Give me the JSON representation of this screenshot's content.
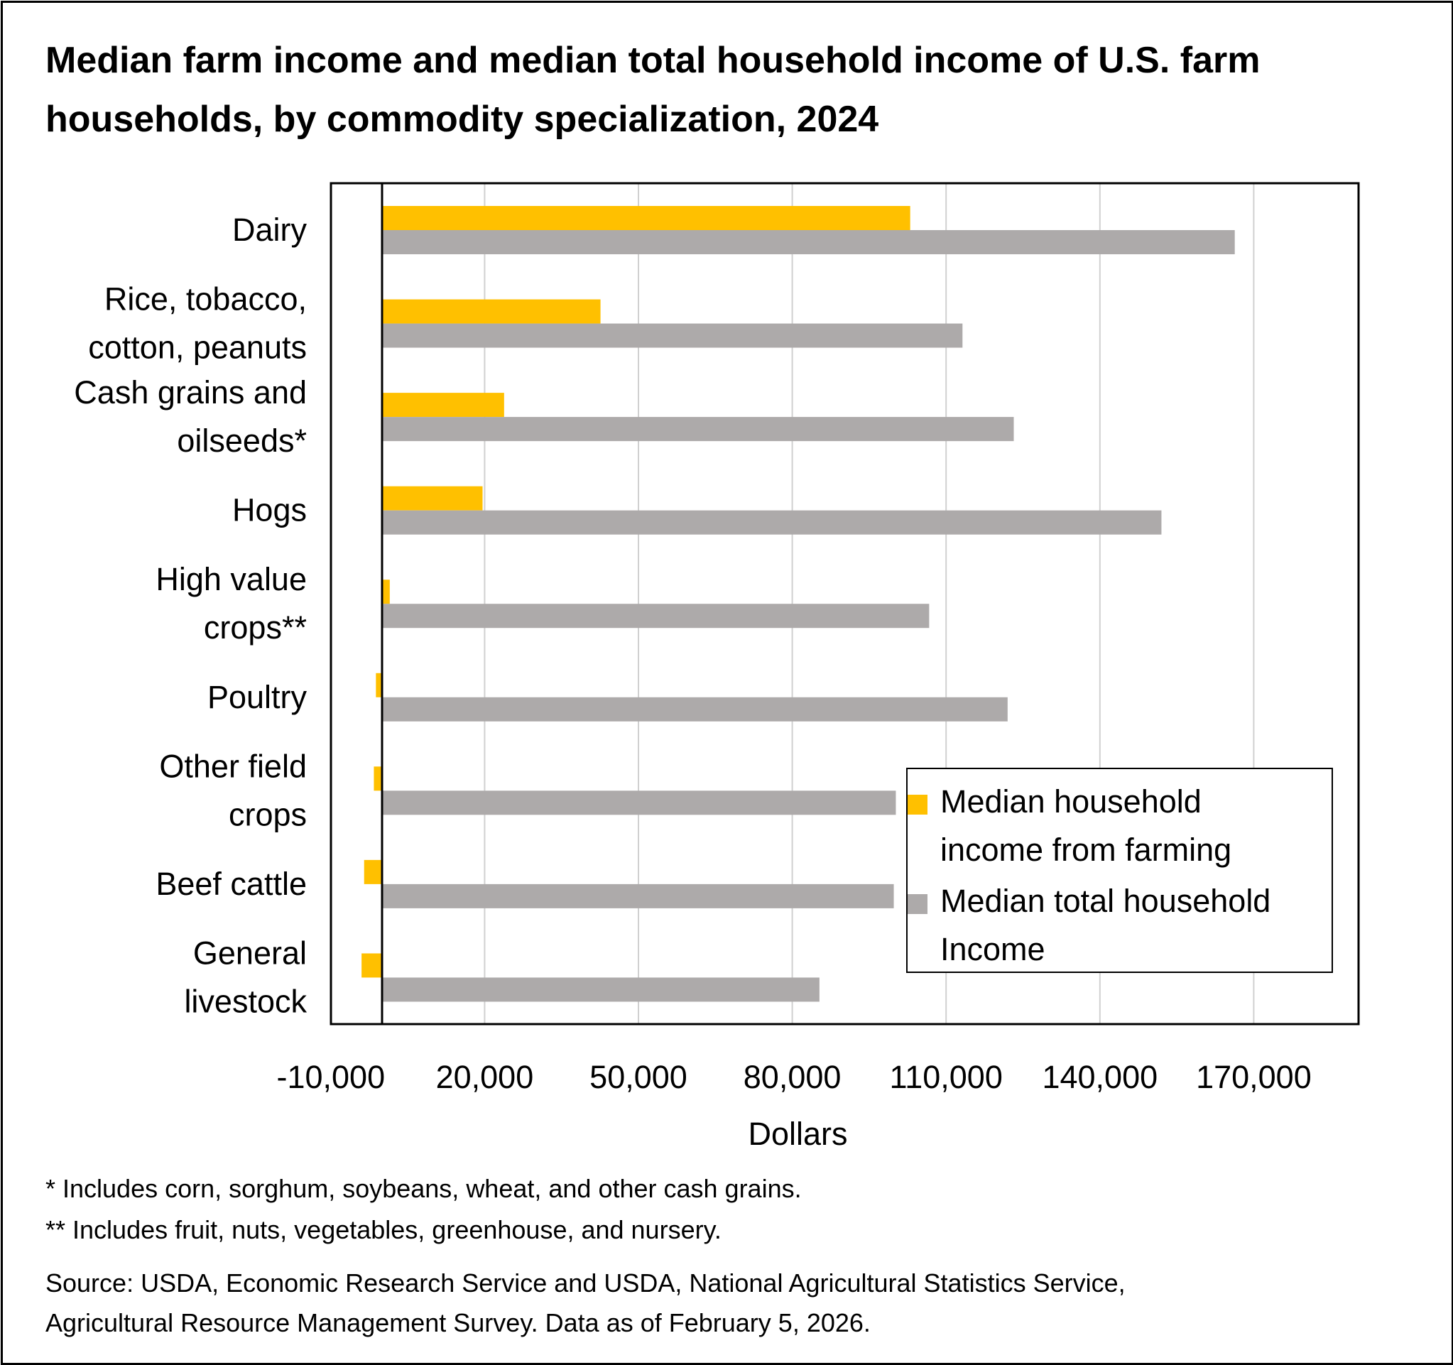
{
  "title": "Median farm income and median total household income of U.S. farm households, by commodity specialization, 2024",
  "chart_data": {
    "type": "bar",
    "orientation": "horizontal",
    "categories": [
      [
        "Dairy"
      ],
      [
        "Rice, tobacco,",
        "cotton, peanuts"
      ],
      [
        "Cash grains and",
        "oilseeds*"
      ],
      [
        "Hogs"
      ],
      [
        "High value",
        "crops**"
      ],
      [
        "Poultry"
      ],
      [
        "Other field",
        "crops"
      ],
      [
        "Beef cattle"
      ],
      [
        "General",
        "livestock"
      ]
    ],
    "series": [
      {
        "name": "Median household income from farming",
        "color": "#FFC000",
        "values": [
          103000,
          42600,
          23800,
          19600,
          1500,
          -1200,
          -1600,
          -3500,
          -4000
        ]
      },
      {
        "name": "Median total household Income",
        "color": "#ADAAAA",
        "values": [
          166300,
          113200,
          123200,
          152000,
          106700,
          122000,
          100200,
          99800,
          85300
        ]
      }
    ],
    "xlabel": "Dollars",
    "ylabel": "",
    "xlim": [
      -10000,
      200000
    ],
    "xticks": [
      -10000,
      20000,
      50000,
      80000,
      110000,
      140000,
      170000
    ],
    "xtick_labels": [
      "-10,000",
      "20,000",
      "50,000",
      "80,000",
      "110,000",
      "140,000",
      "170,000"
    ],
    "grid": "vertical",
    "legend_position": "lower-right"
  },
  "legend": {
    "farming": "Median household income from farming",
    "total": "Median total household Income"
  },
  "notes": {
    "note1": "* Includes corn, sorghum, soybeans, wheat, and other cash grains.",
    "note2": "** Includes fruit, nuts, vegetables, greenhouse, and nursery.",
    "source1": "Source: USDA, Economic Research Service and USDA, National Agricultural Statistics Service,",
    "source2": "Agricultural Resource Management Survey.  Data as of February 5, 2026."
  }
}
